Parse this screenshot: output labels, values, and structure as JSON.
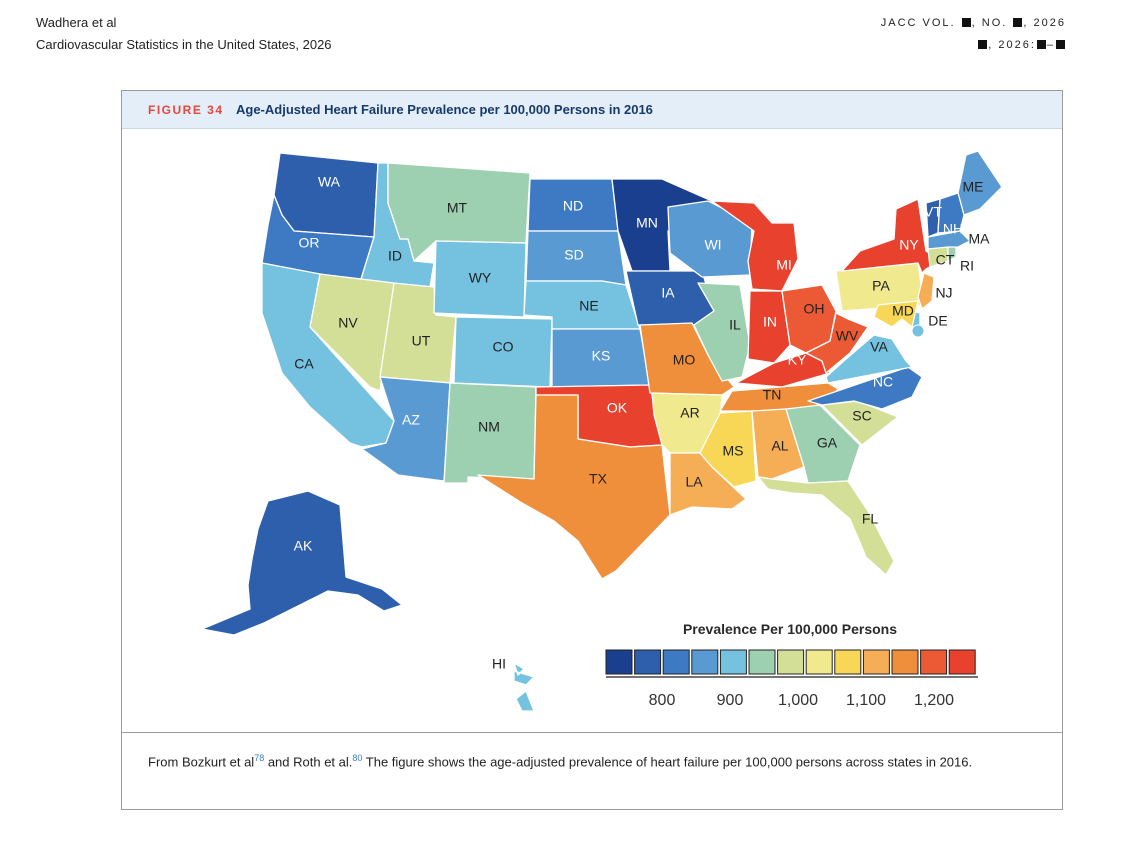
{
  "header": {
    "authors": "Wadhera et al",
    "article_title": "Cardiovascular Statistics in the United States, 2026",
    "journal_prefix": "JACC VOL.",
    "journal_no": ", NO.",
    "journal_year": ", 2026",
    "pages_year": ", 2026:",
    "pages_dash": "–"
  },
  "figure": {
    "number": "FIGURE 34",
    "title": "Age-Adjusted Heart Failure Prevalence per 100,000 Persons in 2016"
  },
  "legend": {
    "title": "Prevalence Per 100,000 Persons",
    "ticks": [
      "800",
      "900",
      "1,000",
      "1,100",
      "1,200"
    ],
    "colors": [
      "#1b3f8f",
      "#2e5fac",
      "#3e7ac3",
      "#5a9ad3",
      "#74c2e0",
      "#9cd0b0",
      "#d3df97",
      "#f1e98e",
      "#f8d756",
      "#f5ae55",
      "#ef8f3b",
      "#ec5a35",
      "#e8422f"
    ]
  },
  "states": [
    {
      "abbr": "WA",
      "level": 1,
      "label_color": "#ffffff"
    },
    {
      "abbr": "OR",
      "level": 2,
      "label_color": "#ffffff"
    },
    {
      "abbr": "CA",
      "level": 4,
      "label_color": "#222222"
    },
    {
      "abbr": "ID",
      "level": 4,
      "label_color": "#222222"
    },
    {
      "abbr": "NV",
      "level": 6,
      "label_color": "#222222"
    },
    {
      "abbr": "UT",
      "level": 6,
      "label_color": "#222222"
    },
    {
      "abbr": "AZ",
      "level": 3,
      "label_color": "#ffffff"
    },
    {
      "abbr": "MT",
      "level": 5,
      "label_color": "#222222"
    },
    {
      "abbr": "WY",
      "level": 4,
      "label_color": "#222222"
    },
    {
      "abbr": "CO",
      "level": 4,
      "label_color": "#222222"
    },
    {
      "abbr": "NM",
      "level": 5,
      "label_color": "#222222"
    },
    {
      "abbr": "ND",
      "level": 2,
      "label_color": "#ffffff"
    },
    {
      "abbr": "SD",
      "level": 3,
      "label_color": "#ffffff"
    },
    {
      "abbr": "NE",
      "level": 4,
      "label_color": "#222222"
    },
    {
      "abbr": "KS",
      "level": 3,
      "label_color": "#ffffff"
    },
    {
      "abbr": "OK",
      "level": 12,
      "label_color": "#ffffff"
    },
    {
      "abbr": "TX",
      "level": 10,
      "label_color": "#222222"
    },
    {
      "abbr": "MN",
      "level": 0,
      "label_color": "#ffffff"
    },
    {
      "abbr": "IA",
      "level": 1,
      "label_color": "#ffffff"
    },
    {
      "abbr": "MO",
      "level": 10,
      "label_color": "#222222"
    },
    {
      "abbr": "AR",
      "level": 7,
      "label_color": "#222222"
    },
    {
      "abbr": "LA",
      "level": 9,
      "label_color": "#222222"
    },
    {
      "abbr": "WI",
      "level": 3,
      "label_color": "#ffffff"
    },
    {
      "abbr": "IL",
      "level": 5,
      "label_color": "#222222"
    },
    {
      "abbr": "MI",
      "level": 12,
      "label_color": "#ffffff"
    },
    {
      "abbr": "IN",
      "level": 12,
      "label_color": "#ffffff"
    },
    {
      "abbr": "OH",
      "level": 11,
      "label_color": "#222222"
    },
    {
      "abbr": "KY",
      "level": 12,
      "label_color": "#ffffff"
    },
    {
      "abbr": "TN",
      "level": 10,
      "label_color": "#222222"
    },
    {
      "abbr": "MS",
      "level": 8,
      "label_color": "#222222"
    },
    {
      "abbr": "AL",
      "level": 9,
      "label_color": "#222222"
    },
    {
      "abbr": "GA",
      "level": 5,
      "label_color": "#222222"
    },
    {
      "abbr": "FL",
      "level": 6,
      "label_color": "#222222"
    },
    {
      "abbr": "SC",
      "level": 6,
      "label_color": "#222222"
    },
    {
      "abbr": "NC",
      "level": 2,
      "label_color": "#ffffff"
    },
    {
      "abbr": "VA",
      "level": 4,
      "label_color": "#222222"
    },
    {
      "abbr": "WV",
      "level": 11,
      "label_color": "#222222"
    },
    {
      "abbr": "PA",
      "level": 7,
      "label_color": "#222222"
    },
    {
      "abbr": "NY",
      "level": 12,
      "label_color": "#ffffff"
    },
    {
      "abbr": "ME",
      "level": 3,
      "label_color": "#222222"
    },
    {
      "abbr": "VT",
      "level": 1,
      "label_color": "#ffffff"
    },
    {
      "abbr": "NH",
      "level": 2,
      "label_color": "#ffffff"
    },
    {
      "abbr": "MA",
      "level": 3,
      "label_color": "#222222"
    },
    {
      "abbr": "CT",
      "level": 6,
      "label_color": "#222222"
    },
    {
      "abbr": "RI",
      "level": 5,
      "label_color": "#222222"
    },
    {
      "abbr": "NJ",
      "level": 9,
      "label_color": "#222222"
    },
    {
      "abbr": "DE",
      "level": 4,
      "label_color": "#222222"
    },
    {
      "abbr": "MD",
      "level": 8,
      "label_color": "#222222"
    },
    {
      "abbr": "AK",
      "level": 1,
      "label_color": "#ffffff"
    },
    {
      "abbr": "HI",
      "level": 4,
      "label_color": "#222222"
    }
  ],
  "caption": {
    "text1": "From Bozkurt et al",
    "ref1": "78",
    "text2": " and Roth et al.",
    "ref2": "80",
    "text3": " The figure shows the age-adjusted prevalence of heart failure per 100,000 persons across states in 2016."
  }
}
